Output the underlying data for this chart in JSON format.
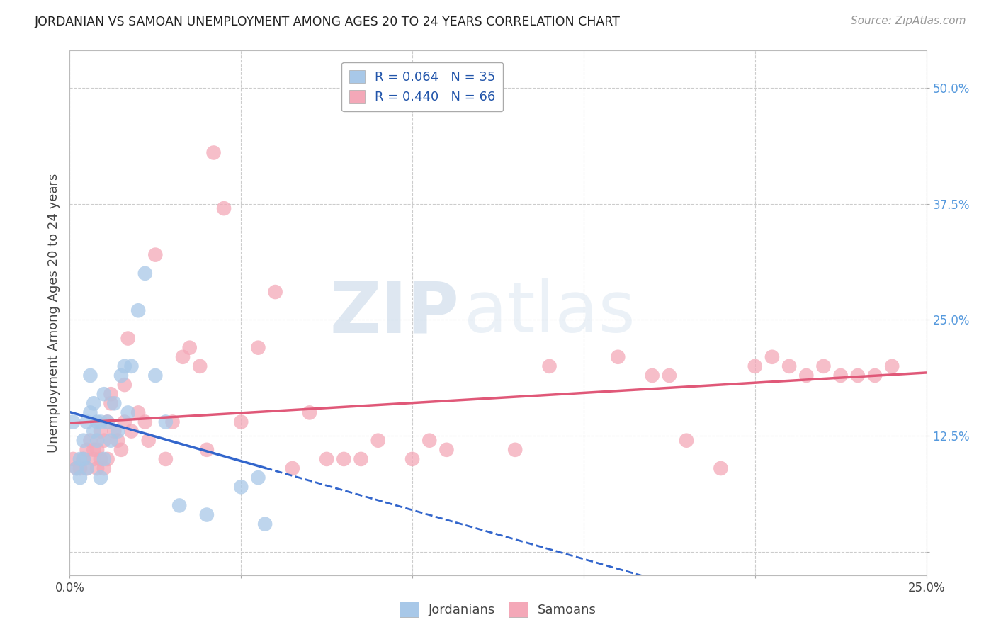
{
  "title": "JORDANIAN VS SAMOAN UNEMPLOYMENT AMONG AGES 20 TO 24 YEARS CORRELATION CHART",
  "source": "Source: ZipAtlas.com",
  "ylabel": "Unemployment Among Ages 20 to 24 years",
  "xlim": [
    0.0,
    0.25
  ],
  "ylim": [
    -0.025,
    0.54
  ],
  "xticks": [
    0.0,
    0.05,
    0.1,
    0.15,
    0.2,
    0.25
  ],
  "xtick_labels": [
    "0.0%",
    "",
    "",
    "",
    "",
    "25.0%"
  ],
  "ytick_positions": [
    0.0,
    0.125,
    0.25,
    0.375,
    0.5
  ],
  "ytick_labels": [
    "",
    "12.5%",
    "25.0%",
    "37.5%",
    "50.0%"
  ],
  "background_color": "#ffffff",
  "grid_color": "#cccccc",
  "jordanian_color": "#a8c8e8",
  "samoan_color": "#f4a8b8",
  "jordanian_line_color": "#3366cc",
  "samoan_line_color": "#e05878",
  "legend_jordan_label": "R = 0.064   N = 35",
  "legend_samoan_label": "R = 0.440   N = 66",
  "watermark_zip": "ZIP",
  "watermark_atlas": "atlas",
  "jordanian_x": [
    0.001,
    0.002,
    0.003,
    0.003,
    0.004,
    0.004,
    0.005,
    0.005,
    0.006,
    0.006,
    0.007,
    0.007,
    0.008,
    0.008,
    0.009,
    0.009,
    0.01,
    0.01,
    0.011,
    0.012,
    0.013,
    0.014,
    0.015,
    0.016,
    0.017,
    0.018,
    0.02,
    0.022,
    0.025,
    0.028,
    0.032,
    0.04,
    0.05,
    0.055,
    0.057
  ],
  "jordanian_y": [
    0.14,
    0.09,
    0.1,
    0.08,
    0.12,
    0.1,
    0.14,
    0.09,
    0.15,
    0.19,
    0.13,
    0.16,
    0.12,
    0.14,
    0.08,
    0.14,
    0.1,
    0.17,
    0.14,
    0.12,
    0.16,
    0.13,
    0.19,
    0.2,
    0.15,
    0.2,
    0.26,
    0.3,
    0.19,
    0.14,
    0.05,
    0.04,
    0.07,
    0.08,
    0.03
  ],
  "samoan_x": [
    0.001,
    0.002,
    0.003,
    0.004,
    0.005,
    0.005,
    0.006,
    0.007,
    0.007,
    0.008,
    0.008,
    0.009,
    0.009,
    0.01,
    0.01,
    0.011,
    0.011,
    0.012,
    0.012,
    0.013,
    0.014,
    0.015,
    0.016,
    0.016,
    0.017,
    0.018,
    0.02,
    0.022,
    0.023,
    0.025,
    0.028,
    0.03,
    0.033,
    0.035,
    0.038,
    0.04,
    0.042,
    0.045,
    0.05,
    0.055,
    0.06,
    0.065,
    0.07,
    0.075,
    0.08,
    0.085,
    0.09,
    0.1,
    0.105,
    0.11,
    0.13,
    0.14,
    0.16,
    0.17,
    0.175,
    0.18,
    0.19,
    0.2,
    0.205,
    0.21,
    0.215,
    0.22,
    0.225,
    0.23,
    0.235,
    0.24
  ],
  "samoan_y": [
    0.1,
    0.09,
    0.09,
    0.1,
    0.11,
    0.09,
    0.12,
    0.1,
    0.11,
    0.09,
    0.11,
    0.1,
    0.13,
    0.12,
    0.09,
    0.14,
    0.1,
    0.16,
    0.17,
    0.13,
    0.12,
    0.11,
    0.14,
    0.18,
    0.23,
    0.13,
    0.15,
    0.14,
    0.12,
    0.32,
    0.1,
    0.14,
    0.21,
    0.22,
    0.2,
    0.11,
    0.43,
    0.37,
    0.14,
    0.22,
    0.28,
    0.09,
    0.15,
    0.1,
    0.1,
    0.1,
    0.12,
    0.1,
    0.12,
    0.11,
    0.11,
    0.2,
    0.21,
    0.19,
    0.19,
    0.12,
    0.09,
    0.2,
    0.21,
    0.2,
    0.19,
    0.2,
    0.19,
    0.19,
    0.19,
    0.2
  ]
}
